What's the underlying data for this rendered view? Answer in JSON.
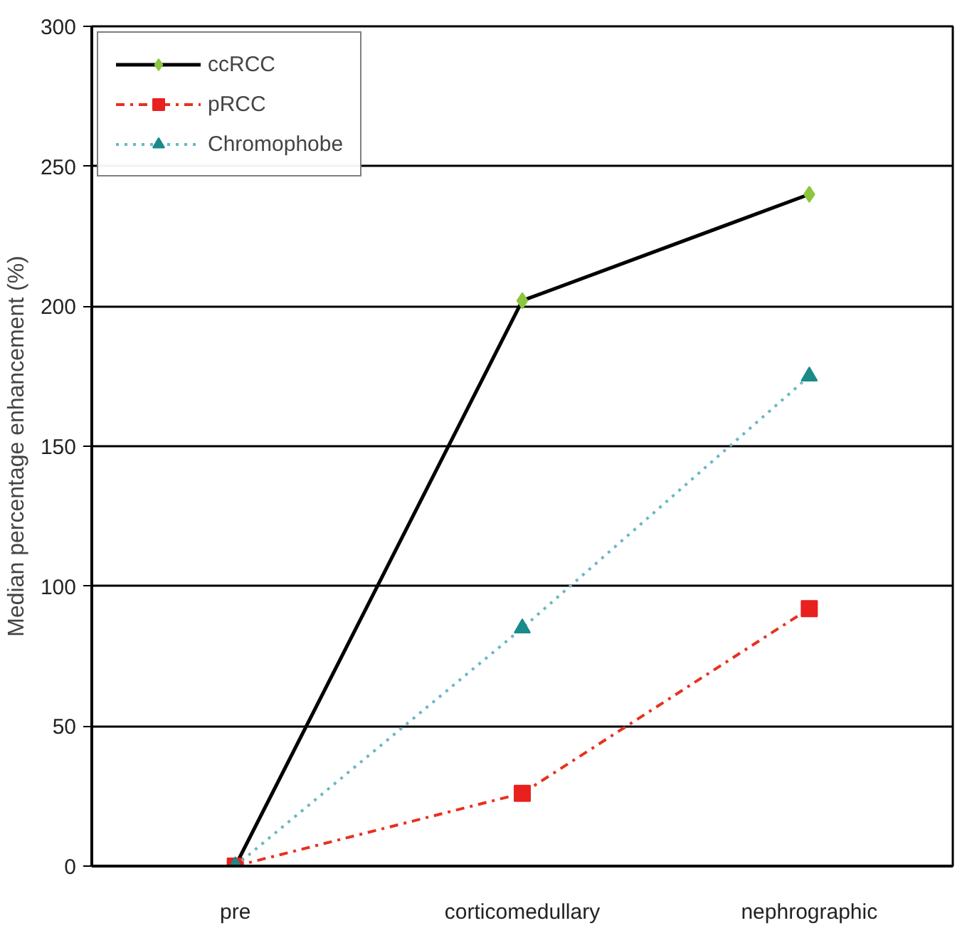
{
  "chart_data": {
    "type": "line",
    "ylabel": "Median percentage enhancement (%)",
    "categories": [
      "pre",
      "corticomedullary",
      "nephrographic"
    ],
    "series": [
      {
        "name": "ccRCC",
        "color": "#000000",
        "colors": [
          "#8cc63f",
          "#8cc63f",
          "#8cc63f"
        ],
        "marker": "diamond",
        "line_style": "solid",
        "values": [
          0,
          202,
          240
        ]
      },
      {
        "name": "pRCC",
        "color": "#e8311f",
        "colors": [
          "#e8211f",
          "#e8211f",
          "#e8211f"
        ],
        "marker": "square",
        "line_style": "dashdot",
        "values": [
          0,
          26,
          92
        ]
      },
      {
        "name": "Chromophobe",
        "color": "#6ab8c4",
        "colors": [
          "#1a8a8a",
          "#1a8a8a",
          "#1a8a8a"
        ],
        "marker": "triangle",
        "line_style": "dotted",
        "values": [
          0,
          85,
          175
        ]
      }
    ],
    "ylim": [
      0,
      300
    ],
    "yticks": [
      0,
      50,
      100,
      150,
      200,
      250,
      300
    ],
    "grid": "y",
    "legend": "top left"
  }
}
